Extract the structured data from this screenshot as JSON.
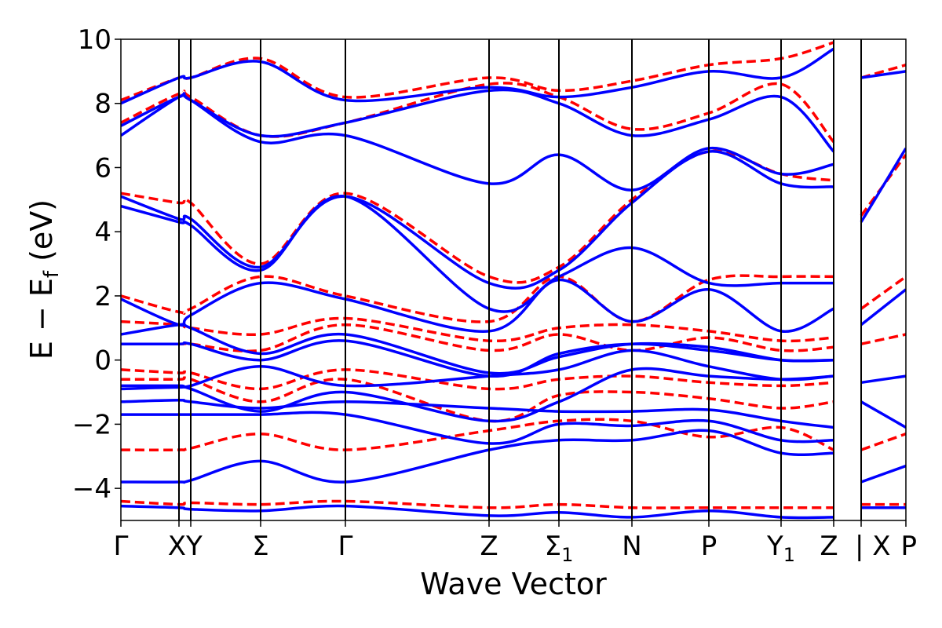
{
  "chart_data": {
    "type": "line",
    "xlabel": "Wave Vector",
    "ylabel_main": "E − E",
    "ylabel_sub": "f",
    "ylabel_unit": " (eV)",
    "ylim": [
      -5,
      10
    ],
    "yticks": [
      -4,
      -2,
      0,
      2,
      4,
      6,
      8,
      10
    ],
    "ytick_labels": [
      "−4",
      "−2",
      "0",
      "2",
      "4",
      "6",
      "8",
      "10"
    ],
    "xlim": [
      0,
      1
    ],
    "kpoints": [
      {
        "label": "Γ",
        "x": 0.0
      },
      {
        "label": "X",
        "x": 0.074
      },
      {
        "label": "Y",
        "x": 0.089
      },
      {
        "label": "Σ",
        "x": 0.178
      },
      {
        "label": "Γ",
        "x": 0.286
      },
      {
        "label": "Z",
        "x": 0.469
      },
      {
        "label": "Σ",
        "sub": "1",
        "x": 0.558
      },
      {
        "label": "N",
        "x": 0.651
      },
      {
        "label": "P",
        "x": 0.749
      },
      {
        "label": "Y",
        "sub": "1",
        "x": 0.841
      },
      {
        "label": "Z",
        "x": 0.908
      },
      {
        "label": "| X",
        "x": 0.943
      },
      {
        "label": "P",
        "x": 1.0
      }
    ],
    "grid": false,
    "series": [
      {
        "color": "#0000ff",
        "style": "solid",
        "bands": [
          {
            "x": [
              0,
              0.074,
              0.089,
              0.178,
              0.286,
              0.469,
              0.558,
              0.651,
              0.749,
              0.841,
              0.908
            ],
            "y": [
              -4.55,
              -4.6,
              -4.65,
              -4.7,
              -4.55,
              -4.85,
              -4.75,
              -4.9,
              -4.7,
              -4.9,
              -4.9
            ]
          },
          {
            "x": [
              0,
              0.074,
              0.089,
              0.178,
              0.286,
              0.469,
              0.558,
              0.651,
              0.749,
              0.841,
              0.908
            ],
            "y": [
              -3.8,
              -3.8,
              -3.75,
              -3.15,
              -3.8,
              -2.8,
              -2.5,
              -2.5,
              -2.2,
              -2.9,
              -2.9
            ]
          },
          {
            "x": [
              0,
              0.074,
              0.089,
              0.178,
              0.286,
              0.469,
              0.558,
              0.651,
              0.749,
              0.841,
              0.908
            ],
            "y": [
              -1.7,
              -1.7,
              -1.7,
              -1.7,
              -1.7,
              -2.6,
              -2.0,
              -2.05,
              -1.9,
              -2.5,
              -2.5
            ]
          },
          {
            "x": [
              0,
              0.074,
              0.089,
              0.178,
              0.286,
              0.469,
              0.558,
              0.651,
              0.749,
              0.841,
              0.908
            ],
            "y": [
              -1.3,
              -1.25,
              -1.3,
              -1.5,
              -1.3,
              -1.5,
              -1.6,
              -1.6,
              -1.55,
              -1.9,
              -2.1
            ]
          },
          {
            "x": [
              0,
              0.074,
              0.089,
              0.178,
              0.286,
              0.469,
              0.558,
              0.651,
              0.749,
              0.841,
              0.908
            ],
            "y": [
              -0.9,
              -0.85,
              -0.9,
              -1.6,
              -1.0,
              -1.9,
              -1.3,
              -0.3,
              -0.5,
              -0.6,
              -0.5
            ]
          },
          {
            "x": [
              0,
              0.074,
              0.089,
              0.178,
              0.286,
              0.469,
              0.558,
              0.651,
              0.749,
              0.841,
              0.908
            ],
            "y": [
              -0.8,
              -0.8,
              -0.8,
              -0.2,
              -0.8,
              -0.5,
              -0.3,
              0.3,
              -0.2,
              -0.6,
              -0.5
            ]
          },
          {
            "x": [
              0,
              0.074,
              0.089,
              0.178,
              0.286,
              0.469,
              0.558,
              0.651,
              0.749,
              0.841,
              0.908
            ],
            "y": [
              0.5,
              0.5,
              0.5,
              0.0,
              0.6,
              -0.5,
              0.2,
              0.5,
              0.3,
              0.0,
              0.0
            ]
          },
          {
            "x": [
              0,
              0.074,
              0.089,
              0.178,
              0.286,
              0.469,
              0.558,
              0.651,
              0.749,
              0.841,
              0.908
            ],
            "y": [
              0.8,
              1.1,
              1.0,
              0.2,
              0.8,
              -0.4,
              0.1,
              0.5,
              0.4,
              0.0,
              0.0
            ]
          },
          {
            "x": [
              0,
              0.074,
              0.089,
              0.178,
              0.286,
              0.469,
              0.558,
              0.651,
              0.749,
              0.841,
              0.908
            ],
            "y": [
              1.9,
              1.1,
              1.4,
              2.4,
              1.9,
              0.9,
              2.5,
              1.2,
              2.2,
              0.9,
              1.6
            ]
          },
          {
            "x": [
              0,
              0.074,
              0.089,
              0.178,
              0.286,
              0.469,
              0.558,
              0.651,
              0.749,
              0.841,
              0.908
            ],
            "y": [
              4.8,
              4.3,
              4.2,
              2.8,
              5.1,
              1.6,
              2.6,
              3.5,
              2.4,
              2.4,
              2.4
            ]
          },
          {
            "x": [
              0,
              0.074,
              0.089,
              0.178,
              0.286,
              0.469,
              0.558,
              0.651,
              0.749,
              0.841,
              0.908
            ],
            "y": [
              5.1,
              4.4,
              4.4,
              2.9,
              5.1,
              2.4,
              2.8,
              4.9,
              6.5,
              5.5,
              5.4
            ]
          },
          {
            "x": [
              0,
              0.074,
              0.089,
              0.178,
              0.286,
              0.469,
              0.558,
              0.651,
              0.749,
              0.841,
              0.908
            ],
            "y": [
              7.0,
              8.2,
              8.1,
              6.8,
              7.0,
              5.5,
              6.4,
              5.3,
              6.6,
              5.8,
              6.1
            ]
          },
          {
            "x": [
              0,
              0.074,
              0.089,
              0.178,
              0.286,
              0.469,
              0.558,
              0.651,
              0.749,
              0.841,
              0.908
            ],
            "y": [
              7.3,
              8.2,
              8.1,
              7.0,
              7.4,
              8.4,
              8.0,
              7.0,
              7.5,
              8.2,
              6.5
            ]
          },
          {
            "x": [
              0,
              0.074,
              0.089,
              0.178,
              0.286,
              0.469,
              0.558,
              0.651,
              0.749,
              0.841,
              0.908
            ],
            "y": [
              8.0,
              8.8,
              8.8,
              9.3,
              8.1,
              8.5,
              8.2,
              8.5,
              9.0,
              8.8,
              9.7
            ]
          },
          {
            "x": [
              0.943,
              1.0
            ],
            "y": [
              -4.6,
              -4.6
            ]
          },
          {
            "x": [
              0.943,
              1.0
            ],
            "y": [
              -3.8,
              -3.3
            ]
          },
          {
            "x": [
              0.943,
              1.0
            ],
            "y": [
              -1.3,
              -2.1
            ]
          },
          {
            "x": [
              0.943,
              1.0
            ],
            "y": [
              -0.7,
              -0.5
            ]
          },
          {
            "x": [
              0.943,
              1.0
            ],
            "y": [
              1.1,
              2.2
            ]
          },
          {
            "x": [
              0.943,
              1.0
            ],
            "y": [
              4.3,
              6.6
            ]
          },
          {
            "x": [
              0.943,
              1.0
            ],
            "y": [
              8.8,
              9.0
            ]
          }
        ]
      },
      {
        "color": "#ff0000",
        "style": "dashed",
        "bands": [
          {
            "x": [
              0,
              0.074,
              0.089,
              0.178,
              0.286,
              0.469,
              0.558,
              0.651,
              0.749,
              0.841,
              0.908
            ],
            "y": [
              -4.4,
              -4.5,
              -4.45,
              -4.5,
              -4.4,
              -4.6,
              -4.5,
              -4.6,
              -4.6,
              -4.6,
              -4.6
            ]
          },
          {
            "x": [
              0,
              0.074,
              0.089,
              0.178,
              0.286,
              0.469,
              0.558,
              0.651,
              0.749,
              0.841,
              0.908
            ],
            "y": [
              -2.8,
              -2.8,
              -2.75,
              -2.3,
              -2.8,
              -2.2,
              -1.9,
              -1.9,
              -2.4,
              -2.1,
              -2.8
            ]
          },
          {
            "x": [
              0,
              0.074,
              0.089,
              0.178,
              0.286,
              0.469,
              0.558,
              0.651,
              0.749,
              0.841,
              0.908
            ],
            "y": [
              -0.6,
              -0.6,
              -0.6,
              -1.3,
              -0.6,
              -1.9,
              -1.1,
              -1.0,
              -1.2,
              -1.5,
              -1.3
            ]
          },
          {
            "x": [
              0,
              0.074,
              0.089,
              0.178,
              0.286,
              0.469,
              0.558,
              0.651,
              0.749,
              0.841,
              0.908
            ],
            "y": [
              -0.3,
              -0.4,
              -0.4,
              -0.9,
              -0.3,
              -0.9,
              -0.6,
              -0.5,
              -0.7,
              -0.8,
              -0.7
            ]
          },
          {
            "x": [
              0,
              0.074,
              0.089,
              0.178,
              0.286,
              0.469,
              0.558,
              0.651,
              0.749,
              0.841,
              0.908
            ],
            "y": [
              0.5,
              0.5,
              0.5,
              0.3,
              1.1,
              0.3,
              0.8,
              0.3,
              0.7,
              0.3,
              0.4
            ]
          },
          {
            "x": [
              0,
              0.074,
              0.089,
              0.178,
              0.286,
              0.469,
              0.558,
              0.651,
              0.749,
              0.841,
              0.908
            ],
            "y": [
              1.2,
              1.1,
              1.0,
              0.8,
              1.3,
              0.6,
              1.0,
              1.1,
              0.9,
              0.6,
              0.7
            ]
          },
          {
            "x": [
              0,
              0.074,
              0.089,
              0.178,
              0.286,
              0.469,
              0.558,
              0.651,
              0.749,
              0.841,
              0.908
            ],
            "y": [
              2.0,
              1.5,
              1.6,
              2.6,
              2.0,
              1.2,
              2.6,
              1.2,
              2.5,
              2.6,
              2.6
            ]
          },
          {
            "x": [
              0,
              0.074,
              0.089,
              0.178,
              0.286,
              0.469,
              0.558,
              0.651,
              0.749,
              0.841,
              0.908
            ],
            "y": [
              5.2,
              4.9,
              4.9,
              3.0,
              5.2,
              2.6,
              2.9,
              5.0,
              6.5,
              5.8,
              5.6
            ]
          },
          {
            "x": [
              0,
              0.074,
              0.089,
              0.178,
              0.286,
              0.469,
              0.558,
              0.651,
              0.749,
              0.841,
              0.908
            ],
            "y": [
              7.4,
              8.3,
              8.2,
              7.0,
              7.4,
              8.6,
              8.2,
              7.2,
              7.7,
              8.6,
              6.8
            ]
          },
          {
            "x": [
              0,
              0.074,
              0.089,
              0.178,
              0.286,
              0.469,
              0.558,
              0.651,
              0.749,
              0.841,
              0.908
            ],
            "y": [
              8.1,
              8.8,
              8.8,
              9.4,
              8.2,
              8.8,
              8.4,
              8.7,
              9.2,
              9.4,
              9.9
            ]
          },
          {
            "x": [
              0.943,
              1.0
            ],
            "y": [
              -4.5,
              -4.5
            ]
          },
          {
            "x": [
              0.943,
              1.0
            ],
            "y": [
              -2.8,
              -2.3
            ]
          },
          {
            "x": [
              0.943,
              1.0
            ],
            "y": [
              0.5,
              0.8
            ]
          },
          {
            "x": [
              0.943,
              1.0
            ],
            "y": [
              1.6,
              2.6
            ]
          },
          {
            "x": [
              0.943,
              1.0
            ],
            "y": [
              4.5,
              6.4
            ]
          },
          {
            "x": [
              0.943,
              1.0
            ],
            "y": [
              8.8,
              9.2
            ]
          }
        ]
      }
    ]
  }
}
